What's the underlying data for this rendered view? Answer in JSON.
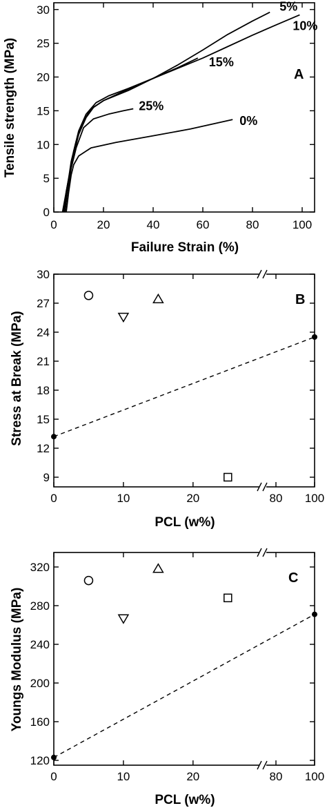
{
  "chart_data": [
    {
      "type": "line",
      "panel": "A",
      "xlabel": "Failure Strain (%)",
      "ylabel": "Tensile strength (MPa)",
      "xlim": [
        0,
        105
      ],
      "ylim": [
        0,
        31
      ],
      "xticks": [
        0,
        20,
        40,
        60,
        80,
        100
      ],
      "yticks": [
        0,
        5,
        10,
        15,
        20,
        25,
        30
      ],
      "series": [
        {
          "name": "0%",
          "x": [
            5,
            6,
            7,
            8,
            10,
            15,
            25,
            40,
            55,
            72
          ],
          "y": [
            0,
            3,
            5.5,
            7,
            8.3,
            9.5,
            10.3,
            11.3,
            12.3,
            13.7
          ]
        },
        {
          "name": "5%",
          "x": [
            4,
            5,
            6,
            7,
            9,
            12,
            15,
            20,
            30,
            40,
            50,
            60,
            70,
            80,
            87
          ],
          "y": [
            0,
            2.5,
            5,
            7.5,
            10.5,
            13.5,
            15.3,
            16.5,
            18,
            19.8,
            21.8,
            24,
            26.3,
            28.3,
            29.6
          ]
        },
        {
          "name": "10%",
          "x": [
            3.5,
            4.5,
            6,
            8,
            10,
            13,
            16,
            20,
            30,
            40,
            50,
            60,
            70,
            80,
            90,
            99
          ],
          "y": [
            0,
            2,
            5,
            8.5,
            11.5,
            14,
            15.5,
            16.5,
            18.2,
            19.8,
            21.3,
            22.8,
            24.5,
            26.2,
            27.8,
            29.2
          ]
        },
        {
          "name": "15%",
          "x": [
            4,
            5,
            6.5,
            8,
            10,
            13,
            17,
            22,
            30,
            40,
            50,
            58
          ],
          "y": [
            0,
            3,
            6,
            9,
            12,
            14.5,
            16.2,
            17.2,
            18.3,
            19.8,
            21.4,
            22.8
          ]
        },
        {
          "name": "25%",
          "x": [
            4.5,
            5.5,
            7,
            9,
            12,
            16,
            22,
            28,
            32
          ],
          "y": [
            0,
            3,
            6.5,
            9.5,
            12.5,
            13.8,
            14.5,
            15,
            15.3
          ]
        }
      ]
    },
    {
      "type": "scatter",
      "panel": "B",
      "xlabel": "PCL (w%)",
      "ylabel": "Stress at Break (MPa)",
      "ylim": [
        8,
        30
      ],
      "yticks": [
        9,
        12,
        15,
        18,
        21,
        24,
        27,
        30
      ],
      "xticks": [
        "0",
        "10",
        "20",
        "80",
        "100"
      ],
      "x_break": true,
      "points": [
        {
          "x": 5,
          "y": 27.8,
          "marker": "circle"
        },
        {
          "x": 10,
          "y": 25.6,
          "marker": "triangle-down"
        },
        {
          "x": 15,
          "y": 27.4,
          "marker": "triangle-up"
        },
        {
          "x": 25,
          "y": 9.0,
          "marker": "square"
        },
        {
          "x": 0,
          "y": 13.2,
          "marker": "filled-circle"
        },
        {
          "x": 100,
          "y": 23.5,
          "marker": "filled-circle"
        }
      ],
      "reference_line": {
        "from": [
          0,
          13.2
        ],
        "to": [
          100,
          23.5
        ],
        "style": "dashed"
      }
    },
    {
      "type": "scatter",
      "panel": "C",
      "xlabel": "PCL (w%)",
      "ylabel": "Youngs Modulus (MPa)",
      "ylim": [
        115,
        335
      ],
      "yticks": [
        120,
        160,
        200,
        240,
        280,
        320
      ],
      "xticks": [
        "0",
        "10",
        "20",
        "80",
        "100"
      ],
      "x_break": true,
      "points": [
        {
          "x": 5,
          "y": 306,
          "marker": "circle"
        },
        {
          "x": 10,
          "y": 267,
          "marker": "triangle-down"
        },
        {
          "x": 15,
          "y": 318,
          "marker": "triangle-up"
        },
        {
          "x": 25,
          "y": 288,
          "marker": "square"
        },
        {
          "x": 0,
          "y": 123,
          "marker": "filled-circle"
        },
        {
          "x": 100,
          "y": 271,
          "marker": "filled-circle"
        }
      ],
      "reference_line": {
        "from": [
          0,
          123
        ],
        "to": [
          100,
          271
        ],
        "style": "dashed"
      }
    }
  ]
}
